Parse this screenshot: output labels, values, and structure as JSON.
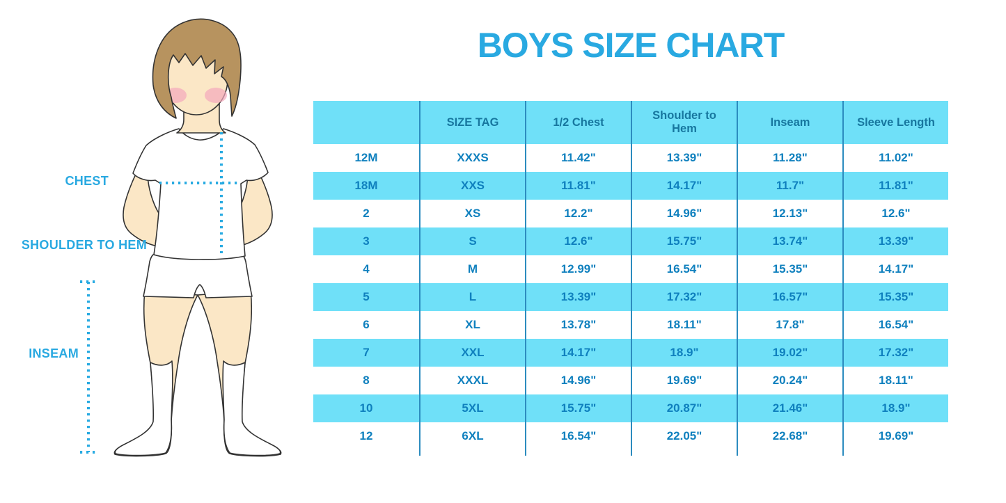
{
  "page": {
    "background": "#FFFFFF"
  },
  "title": {
    "text": "BOYS SIZE CHART",
    "color": "#29A9E1"
  },
  "figure": {
    "description": "boy-with-measurement-guides",
    "labels": {
      "chest": "CHEST",
      "shoulder_to_hem": "SHOULDER TO HEM",
      "inseam": "INSEAM"
    },
    "label_color": "#29A9E1",
    "measure_line_color": "#29ABE2",
    "skin_color": "#FBE7C6",
    "hair_color": "#B7935F",
    "cheek_color": "#F3A8BC",
    "clothes_color": "#FFFFFF",
    "outline_color": "#333333"
  },
  "table": {
    "header_bg": "#6FE0F8",
    "stripe_bg": "#6FE0F8",
    "divider_color": "#2C8CBF",
    "header_text_color": "#17779F",
    "cell_text_color": "#0F80BE",
    "columns": [
      "",
      "SIZE TAG",
      "1/2 Chest",
      "Shoulder to Hem",
      "Inseam",
      "Sleeve Length"
    ],
    "rows": [
      [
        "12M",
        "XXXS",
        "11.42\"",
        "13.39\"",
        "11.28\"",
        "11.02\""
      ],
      [
        "18M",
        "XXS",
        "11.81\"",
        "14.17\"",
        "11.7\"",
        "11.81\""
      ],
      [
        "2",
        "XS",
        "12.2\"",
        "14.96\"",
        "12.13\"",
        "12.6\""
      ],
      [
        "3",
        "S",
        "12.6\"",
        "15.75\"",
        "13.74\"",
        "13.39\""
      ],
      [
        "4",
        "M",
        "12.99\"",
        "16.54\"",
        "15.35\"",
        "14.17\""
      ],
      [
        "5",
        "L",
        "13.39\"",
        "17.32\"",
        "16.57\"",
        "15.35\""
      ],
      [
        "6",
        "XL",
        "13.78\"",
        "18.11\"",
        "17.8\"",
        "16.54\""
      ],
      [
        "7",
        "XXL",
        "14.17\"",
        "18.9\"",
        "19.02\"",
        "17.32\""
      ],
      [
        "8",
        "XXXL",
        "14.96\"",
        "19.69\"",
        "20.24\"",
        "18.11\""
      ],
      [
        "10",
        "5XL",
        "15.75\"",
        "20.87\"",
        "21.46\"",
        "18.9\""
      ],
      [
        "12",
        "6XL",
        "16.54\"",
        "22.05\"",
        "22.68\"",
        "19.69\""
      ]
    ]
  }
}
